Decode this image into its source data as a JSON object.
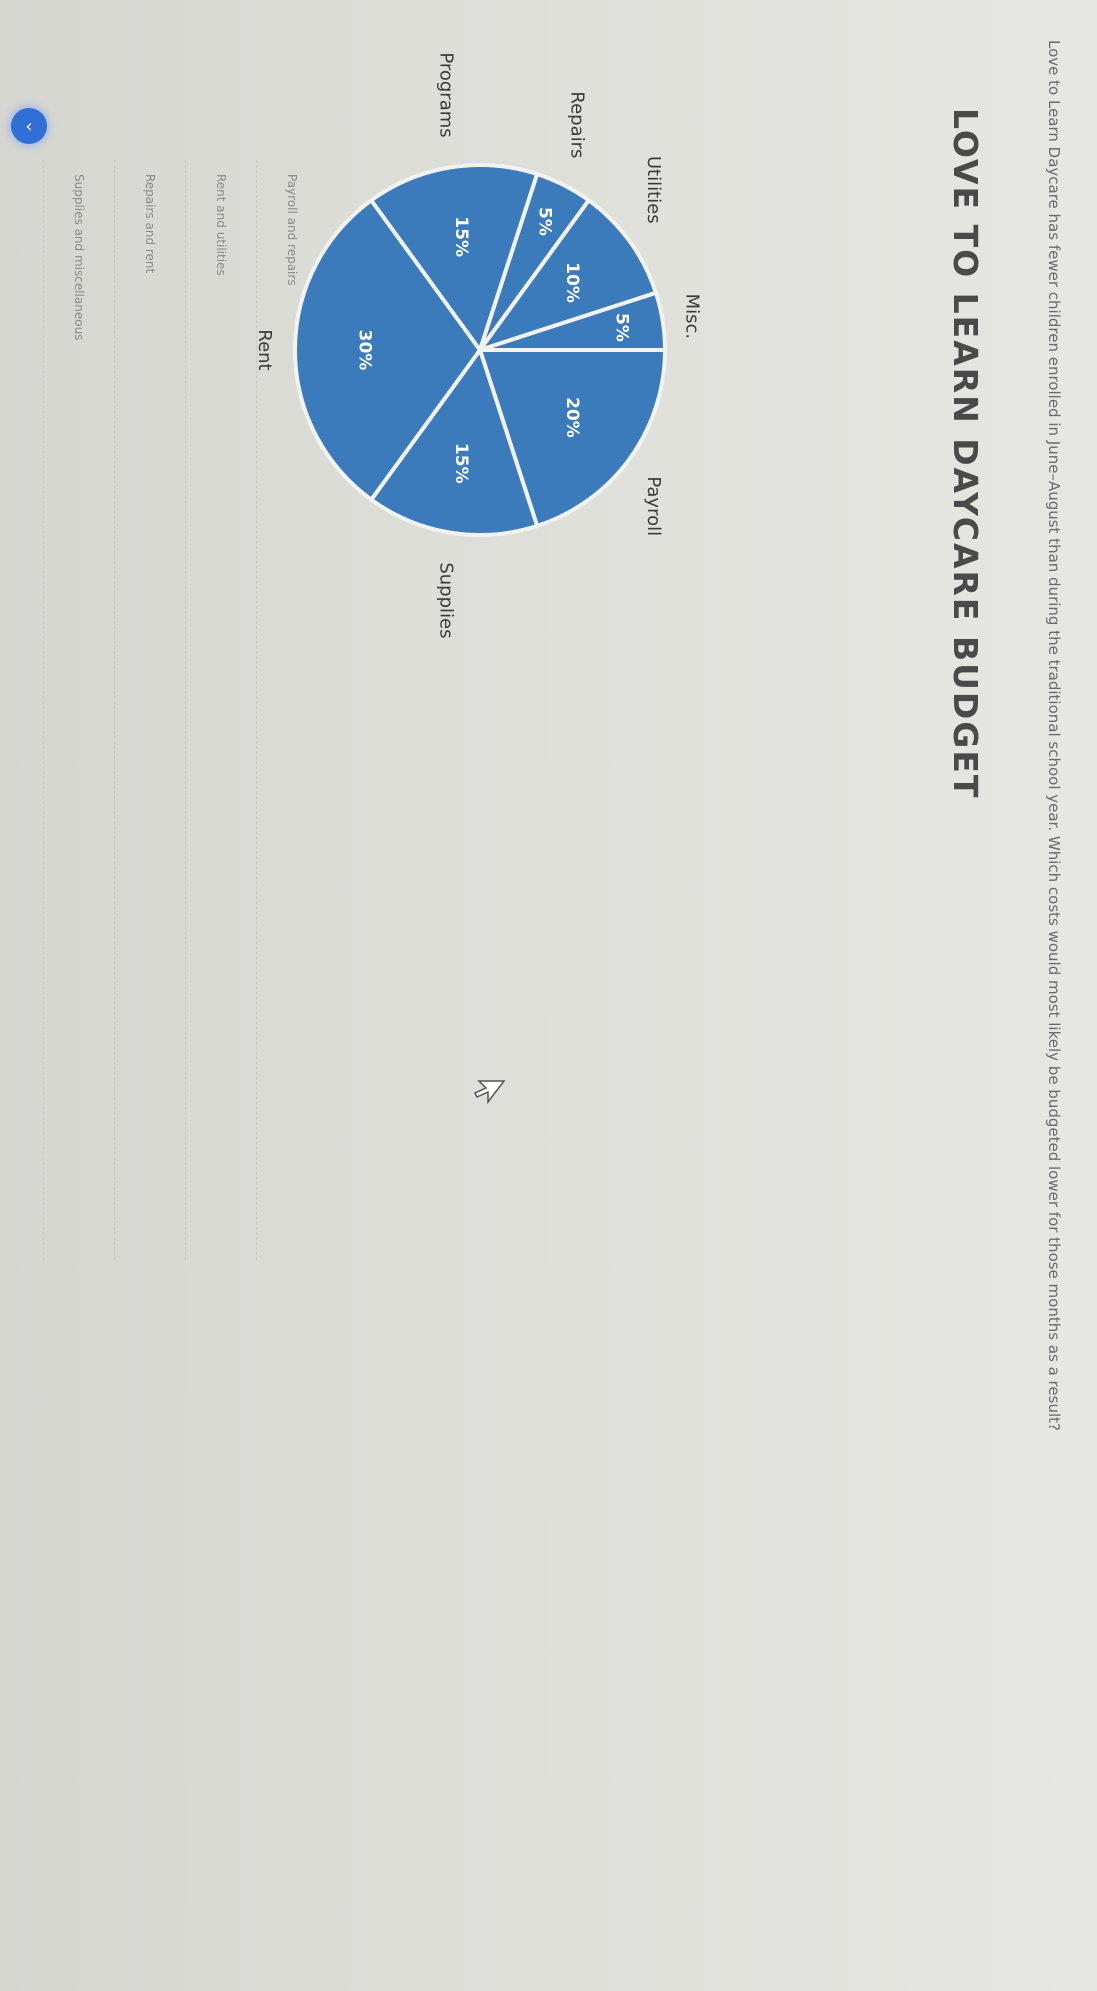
{
  "question": "Love to Learn Daycare has fewer children enrolled in June–August than during the traditional school year. Which costs would most likely be budgeted lower for those months as a result?",
  "chart_data": {
    "type": "pie",
    "title": "LOVE TO LEARN DAYCARE BUDGET",
    "categories": [
      "Payroll",
      "Supplies",
      "Rent",
      "Programs",
      "Repairs",
      "Utilities",
      "Misc."
    ],
    "values": [
      20,
      15,
      30,
      15,
      5,
      10,
      5
    ],
    "labels": [
      "20%",
      "15%",
      "30%",
      "15%",
      "5%",
      "10%",
      "5%"
    ],
    "color": "#3b7bbb"
  },
  "options": [
    "Payroll and repairs",
    "Rent and utilities",
    "Repairs and rent",
    "Supplies and miscellaneous"
  ],
  "back_button": {
    "icon": "chevron-left-icon",
    "glyph": "‹",
    "color": "#2f6fd6"
  }
}
